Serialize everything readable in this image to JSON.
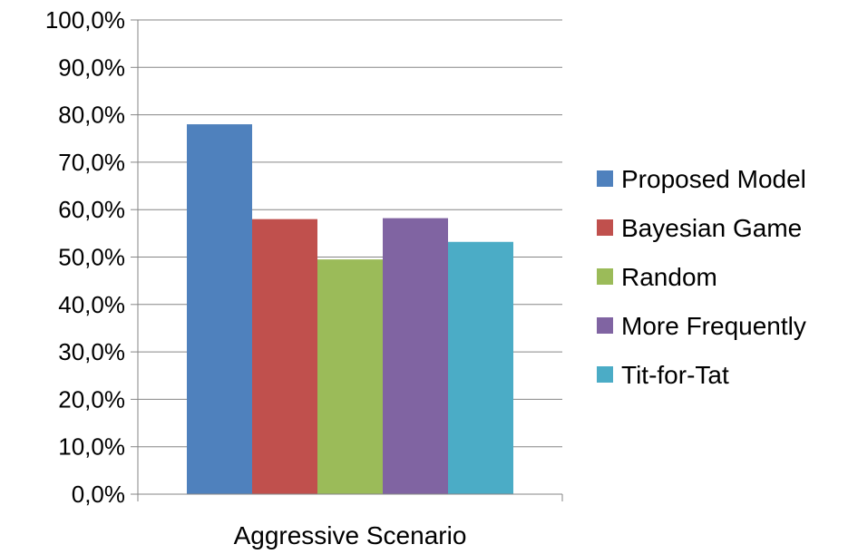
{
  "chart_data": {
    "type": "bar",
    "categories": [
      "Aggressive Scenario"
    ],
    "series": [
      {
        "name": "Proposed Model",
        "values": [
          78.0
        ],
        "color": "#4F81BD"
      },
      {
        "name": "Bayesian Game",
        "values": [
          58.0
        ],
        "color": "#C0504D"
      },
      {
        "name": "Random",
        "values": [
          49.5
        ],
        "color": "#9BBB59"
      },
      {
        "name": "More Frequently",
        "values": [
          58.2
        ],
        "color": "#8064A2"
      },
      {
        "name": "Tit-for-Tat",
        "values": [
          53.2
        ],
        "color": "#4BACC6"
      }
    ],
    "yticks": [
      "0,0%",
      "10,0%",
      "20,0%",
      "30,0%",
      "40,0%",
      "50,0%",
      "60,0%",
      "70,0%",
      "80,0%",
      "90,0%",
      "100,0%"
    ],
    "ylim": [
      0,
      100
    ],
    "grid": true,
    "legend": "right"
  }
}
